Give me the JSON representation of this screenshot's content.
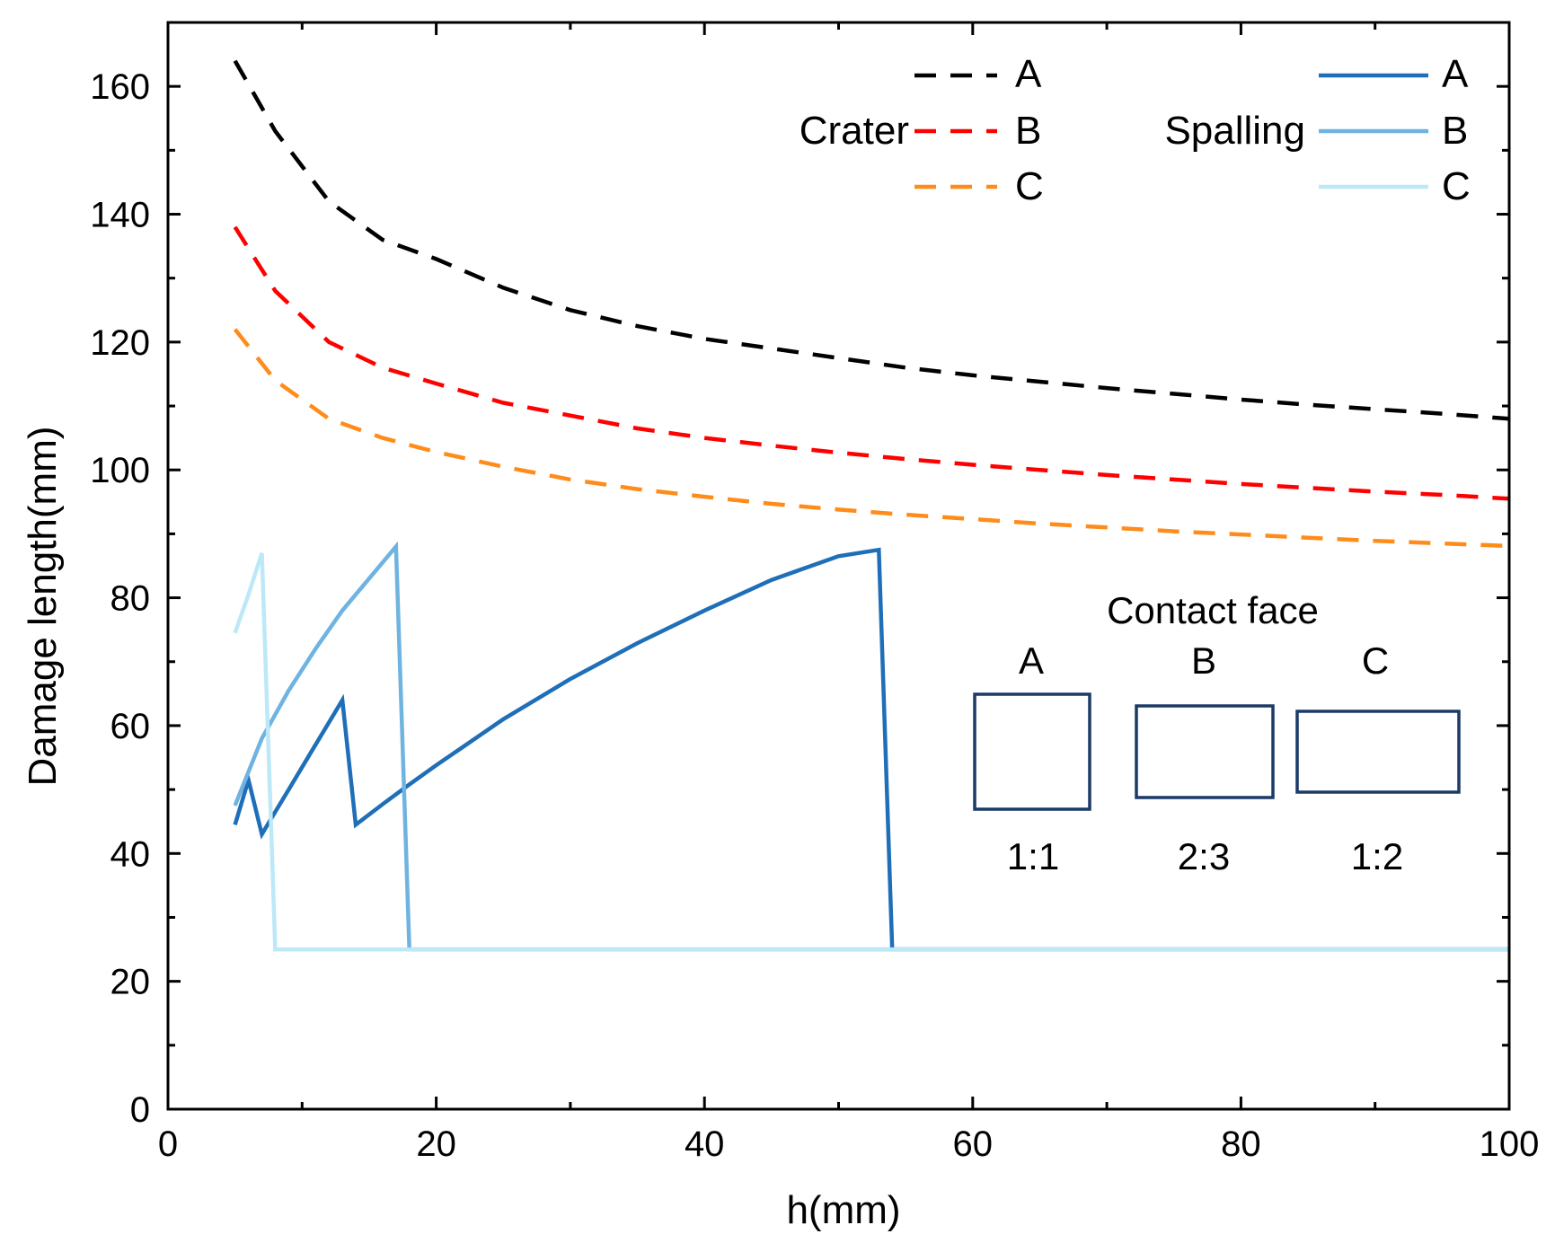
{
  "chart_data": {
    "type": "line",
    "title": "",
    "xlabel": "h(mm)",
    "ylabel": "Damage length(mm)",
    "xlim": [
      0,
      100
    ],
    "ylim": [
      0,
      170
    ],
    "xticks": [
      0,
      20,
      40,
      60,
      80,
      100
    ],
    "yticks": [
      0,
      20,
      40,
      60,
      80,
      100,
      120,
      140,
      160
    ],
    "grid": false,
    "series": [
      {
        "name": "Crater A",
        "group": "Crater",
        "label": "A",
        "style": "dashed",
        "color": "#000000",
        "x": [
          5,
          8,
          12,
          16,
          20,
          25,
          30,
          35,
          40,
          45,
          50,
          55,
          60,
          65,
          70,
          75,
          80,
          85,
          90,
          95,
          100
        ],
        "y": [
          164,
          153,
          142,
          136,
          133,
          128.5,
          125,
          122.5,
          120.5,
          119,
          117.5,
          116,
          114.8,
          113.8,
          112.8,
          111.9,
          111,
          110.2,
          109.5,
          108.8,
          108
        ]
      },
      {
        "name": "Crater B",
        "group": "Crater",
        "label": "B",
        "style": "dashed",
        "color": "#ff0000",
        "x": [
          5,
          8,
          12,
          16,
          20,
          25,
          30,
          35,
          40,
          45,
          50,
          55,
          60,
          65,
          70,
          75,
          80,
          85,
          90,
          95,
          100
        ],
        "y": [
          138,
          128,
          120,
          116,
          113.5,
          110.5,
          108.5,
          106.5,
          105,
          103.8,
          102.7,
          101.7,
          100.8,
          100,
          99.2,
          98.5,
          97.8,
          97.2,
          96.6,
          96.1,
          95.5
        ]
      },
      {
        "name": "Crater C",
        "group": "Crater",
        "label": "C",
        "style": "dashed",
        "color": "#ff8c1a",
        "x": [
          5,
          8,
          12,
          16,
          20,
          25,
          30,
          35,
          40,
          45,
          50,
          55,
          60,
          65,
          70,
          75,
          80,
          85,
          90,
          95,
          100
        ],
        "y": [
          122,
          114,
          108,
          105,
          102.8,
          100.5,
          98.5,
          97,
          95.8,
          94.7,
          93.8,
          93,
          92.3,
          91.6,
          91,
          90.4,
          89.9,
          89.4,
          88.9,
          88.5,
          88.1
        ]
      },
      {
        "name": "Spalling A",
        "group": "Spalling",
        "label": "A",
        "style": "solid",
        "color": "#1f6fb8",
        "x": [
          5,
          6,
          7,
          8,
          9,
          10,
          11,
          12,
          13,
          14,
          16,
          18,
          20,
          25,
          30,
          35,
          40,
          45,
          50,
          53,
          54,
          100
        ],
        "y": [
          44.5,
          51.5,
          43,
          46.5,
          50,
          53.5,
          57,
          60.5,
          64,
          44.5,
          47.7,
          50.8,
          53.8,
          61,
          67.3,
          72.9,
          78,
          82.8,
          86.5,
          87.5,
          25,
          25
        ]
      },
      {
        "name": "Spalling B",
        "group": "Spalling",
        "label": "B",
        "style": "solid",
        "color": "#6fb3e0",
        "x": [
          5,
          7,
          9,
          11,
          13,
          15,
          17,
          18,
          100
        ],
        "y": [
          47.5,
          58,
          65.5,
          72,
          78,
          83,
          88,
          25,
          25
        ]
      },
      {
        "name": "Spalling C",
        "group": "Spalling",
        "label": "C",
        "style": "solid",
        "color": "#bde8f7",
        "x": [
          5,
          6,
          7,
          8,
          100
        ],
        "y": [
          74.5,
          80.5,
          87,
          25,
          25
        ]
      }
    ],
    "legend": {
      "placement": "top-right",
      "crater_title": "Crater",
      "spalling_title": "Spalling",
      "labels": [
        "A",
        "B",
        "C"
      ]
    },
    "inset": {
      "title": "Contact face",
      "faces": [
        {
          "label": "A",
          "ratio": "1:1"
        },
        {
          "label": "B",
          "ratio": "2:3"
        },
        {
          "label": "C",
          "ratio": "1:2"
        }
      ],
      "color": "#1b3a66"
    }
  }
}
